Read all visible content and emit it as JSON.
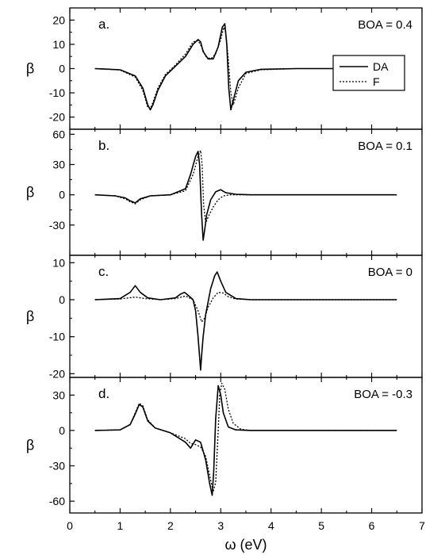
{
  "chart_data": {
    "type": "line",
    "xlabel": "ω (eV)",
    "xlim": [
      0,
      7
    ],
    "xticks": [
      "0",
      "1",
      "2",
      "3",
      "4",
      "5",
      "6",
      "7"
    ],
    "legend": {
      "placement": "panel-a right",
      "entries": [
        {
          "label": "DA",
          "style": "solid"
        },
        {
          "label": "F",
          "style": "dotted"
        }
      ]
    },
    "panels": [
      {
        "label": "a.",
        "annotation": "BOA = 0.4",
        "ylabel": "β",
        "ylim": [
          -25,
          25
        ],
        "yticks": [
          "20",
          "10",
          "0",
          "-10",
          "-20"
        ],
        "yticks_values": [
          20,
          10,
          0,
          -10,
          -20
        ],
        "series": [
          {
            "name": "DA",
            "style": "solid",
            "x": [
              0.5,
              1.0,
              1.3,
              1.45,
              1.55,
              1.6,
              1.65,
              1.75,
              1.9,
              2.1,
              2.3,
              2.45,
              2.55,
              2.6,
              2.65,
              2.75,
              2.85,
              2.95,
              3.03,
              3.08,
              3.12,
              3.16,
              3.2,
              3.25,
              3.35,
              3.5,
              3.8,
              4.5,
              6.5
            ],
            "y": [
              0,
              -0.5,
              -3,
              -8,
              -15,
              -17,
              -15,
              -9,
              -3,
              1,
              5,
              10,
              12,
              11,
              7,
              4,
              4,
              9,
              17,
              18.5,
              10,
              -8,
              -17,
              -13,
              -5,
              -1.5,
              -0.3,
              0,
              0
            ]
          },
          {
            "name": "F",
            "style": "dotted",
            "x": [
              0.5,
              1.0,
              1.3,
              1.45,
              1.55,
              1.6,
              1.65,
              1.75,
              1.9,
              2.1,
              2.3,
              2.45,
              2.55,
              2.62,
              2.7,
              2.8,
              2.9,
              3.0,
              3.06,
              3.1,
              3.15,
              3.2,
              3.25,
              3.35,
              3.5,
              3.8,
              4.5,
              6.5
            ],
            "y": [
              0,
              -0.6,
              -3.5,
              -9,
              -16,
              -16.5,
              -14,
              -8,
              -2.5,
              1.5,
              6,
              11,
              11.5,
              9,
              5,
              4,
              6,
              12,
              17,
              15,
              4,
              -10,
              -15,
              -8,
              -2,
              -0.5,
              0,
              0
            ]
          }
        ]
      },
      {
        "label": "b.",
        "annotation": "BOA = 0.1",
        "ylabel": "β",
        "ylim": [
          -60,
          65
        ],
        "yticks": [
          "60",
          "30",
          "0",
          "-30"
        ],
        "yticks_values": [
          60,
          30,
          0,
          -30
        ],
        "series": [
          {
            "name": "DA",
            "style": "solid",
            "x": [
              0.5,
              0.9,
              1.1,
              1.2,
              1.3,
              1.4,
              1.6,
              2.0,
              2.3,
              2.4,
              2.5,
              2.55,
              2.58,
              2.62,
              2.65,
              2.68,
              2.72,
              2.8,
              2.9,
              3.0,
              3.1,
              3.3,
              3.6,
              4.5,
              6.5
            ],
            "y": [
              0,
              -1,
              -3,
              -6,
              -8,
              -4,
              -1,
              0,
              6,
              20,
              38,
              43,
              30,
              -20,
              -45,
              -35,
              -20,
              -5,
              3,
              5,
              2,
              0.5,
              0,
              0,
              0
            ]
          },
          {
            "name": "F",
            "style": "dotted",
            "x": [
              0.5,
              0.9,
              1.1,
              1.2,
              1.3,
              1.4,
              1.6,
              2.0,
              2.3,
              2.45,
              2.55,
              2.6,
              2.63,
              2.66,
              2.7,
              2.75,
              2.85,
              2.95,
              3.05,
              3.2,
              3.5,
              4.5,
              6.5
            ],
            "y": [
              0,
              -1,
              -4,
              -7,
              -9,
              -5,
              -1,
              0,
              4,
              20,
              38,
              44,
              30,
              -10,
              -28,
              -22,
              -12,
              -5,
              -1,
              0,
              0,
              0,
              0
            ]
          }
        ]
      },
      {
        "label": "c.",
        "annotation": "BOA = 0",
        "ylabel": "β",
        "ylim": [
          -21,
          12
        ],
        "yticks": [
          "10",
          "0",
          "-10",
          "-20"
        ],
        "yticks_values": [
          10,
          0,
          -10,
          -20
        ],
        "series": [
          {
            "name": "DA",
            "style": "solid",
            "x": [
              0.5,
              1.0,
              1.2,
              1.3,
              1.4,
              1.55,
              1.8,
              2.1,
              2.2,
              2.28,
              2.35,
              2.45,
              2.5,
              2.55,
              2.6,
              2.62,
              2.65,
              2.7,
              2.8,
              2.88,
              2.93,
              3.0,
              3.1,
              3.3,
              3.6,
              4.5,
              6.5
            ],
            "y": [
              0,
              0.3,
              2,
              3.8,
              2,
              0.5,
              0,
              0.5,
              1.5,
              2,
              1.2,
              0,
              -3,
              -10,
              -19,
              -15,
              -10,
              -4,
              3,
              6.5,
              7.5,
              5,
              2,
              0.3,
              0,
              0,
              0
            ]
          },
          {
            "name": "F",
            "style": "dotted",
            "x": [
              0.5,
              1.0,
              1.3,
              1.5,
              1.8,
              2.1,
              2.3,
              2.45,
              2.55,
              2.62,
              2.68,
              2.75,
              2.85,
              2.95,
              3.05,
              3.15,
              3.3,
              3.6,
              4.5,
              6.5
            ],
            "y": [
              0,
              0.2,
              0.7,
              0.3,
              0,
              0.3,
              1,
              0,
              -3,
              -6,
              -5,
              -2,
              0.5,
              2,
              1.8,
              0.8,
              0.2,
              0,
              0,
              0
            ]
          }
        ]
      },
      {
        "label": "d.",
        "annotation": "BOA = -0.3",
        "ylabel": "β",
        "ylim": [
          -70,
          45
        ],
        "yticks": [
          "30",
          "0",
          "-30",
          "-60"
        ],
        "yticks_values": [
          30,
          0,
          -30,
          -60
        ],
        "series": [
          {
            "name": "DA",
            "style": "solid",
            "x": [
              0.5,
              1.0,
              1.2,
              1.3,
              1.38,
              1.45,
              1.55,
              1.7,
              2.0,
              2.3,
              2.4,
              2.5,
              2.6,
              2.7,
              2.78,
              2.83,
              2.86,
              2.9,
              2.95,
              3.0,
              3.05,
              3.15,
              3.3,
              3.6,
              4.5,
              6.5
            ],
            "y": [
              0,
              0.5,
              5,
              14,
              22,
              20,
              8,
              2,
              -2,
              -10,
              -15,
              -8,
              -10,
              -25,
              -45,
              -55,
              -35,
              10,
              38,
              30,
              15,
              3,
              0.5,
              0,
              0,
              0
            ]
          },
          {
            "name": "F",
            "style": "dotted",
            "x": [
              0.5,
              1.0,
              1.2,
              1.3,
              1.38,
              1.45,
              1.55,
              1.7,
              2.0,
              2.3,
              2.4,
              2.5,
              2.6,
              2.7,
              2.78,
              2.85,
              2.9,
              2.95,
              2.98,
              3.02,
              3.08,
              3.15,
              3.25,
              3.4,
              3.6,
              4.5,
              6.5
            ],
            "y": [
              0,
              0.5,
              5,
              15,
              23,
              21,
              9,
              2,
              -2,
              -7,
              -11,
              -12,
              -14,
              -22,
              -38,
              -52,
              -44,
              0,
              30,
              40,
              35,
              18,
              6,
              1,
              0,
              0,
              0
            ]
          }
        ]
      }
    ]
  }
}
